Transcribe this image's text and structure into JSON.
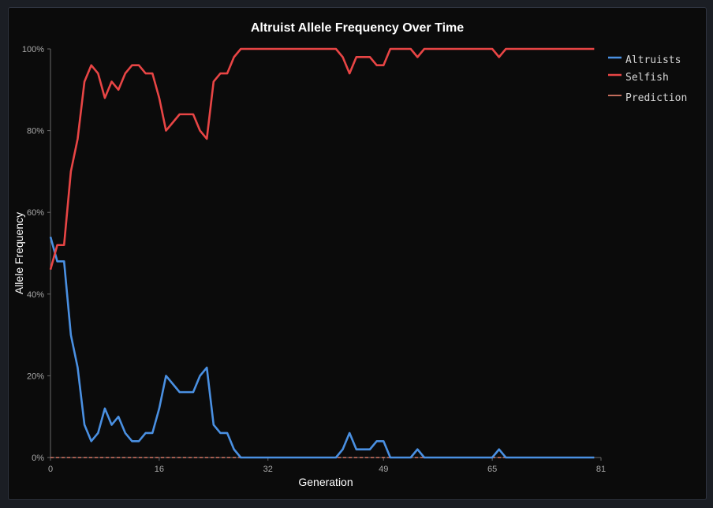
{
  "chart_data": {
    "type": "line",
    "title": "Altruist Allele Frequency Over Time",
    "xlabel": "Generation",
    "ylabel": "Allele Frequency",
    "xlim": [
      0,
      81
    ],
    "ylim": [
      0,
      100
    ],
    "x_ticks": [
      "0",
      "16",
      "32",
      "49",
      "65",
      "81"
    ],
    "y_ticks": [
      "0%",
      "20%",
      "40%",
      "60%",
      "80%",
      "100%"
    ],
    "legend_position": "top-right",
    "grid": false,
    "series": [
      {
        "name": "Altruists",
        "color": "#4a90e2",
        "style": "solid",
        "values": [
          54,
          48,
          48,
          30,
          22,
          8,
          4,
          6,
          12,
          8,
          10,
          6,
          4,
          4,
          6,
          6,
          12,
          20,
          18,
          16,
          16,
          16,
          20,
          22,
          8,
          6,
          6,
          2,
          0,
          0,
          0,
          0,
          0,
          0,
          0,
          0,
          0,
          0,
          0,
          0,
          0,
          0,
          0,
          2,
          6,
          2,
          2,
          2,
          4,
          4,
          0,
          0,
          0,
          0,
          2,
          0,
          0,
          0,
          0,
          0,
          0,
          0,
          0,
          0,
          0,
          0,
          2,
          0,
          0,
          0,
          0,
          0,
          0,
          0,
          0,
          0,
          0,
          0,
          0,
          0,
          0
        ]
      },
      {
        "name": "Selfish",
        "color": "#e84545",
        "style": "solid",
        "values": [
          46,
          52,
          52,
          70,
          78,
          92,
          96,
          94,
          88,
          92,
          90,
          94,
          96,
          96,
          94,
          94,
          88,
          80,
          82,
          84,
          84,
          84,
          80,
          78,
          92,
          94,
          94,
          98,
          100,
          100,
          100,
          100,
          100,
          100,
          100,
          100,
          100,
          100,
          100,
          100,
          100,
          100,
          100,
          98,
          94,
          98,
          98,
          98,
          96,
          96,
          100,
          100,
          100,
          100,
          98,
          100,
          100,
          100,
          100,
          100,
          100,
          100,
          100,
          100,
          100,
          100,
          98,
          100,
          100,
          100,
          100,
          100,
          100,
          100,
          100,
          100,
          100,
          100,
          100,
          100,
          100
        ]
      },
      {
        "name": "Prediction",
        "color": "#ff8c78",
        "style": "dashed",
        "values": [
          0,
          0,
          0,
          0,
          0,
          0,
          0,
          0,
          0,
          0,
          0,
          0,
          0,
          0,
          0,
          0,
          0,
          0,
          0,
          0,
          0,
          0,
          0,
          0,
          0,
          0,
          0,
          0,
          0,
          0,
          0,
          0,
          0,
          0,
          0,
          0,
          0,
          0,
          0,
          0,
          0,
          0,
          0,
          0,
          0,
          0,
          0,
          0,
          0,
          0,
          0,
          0,
          0,
          0,
          0,
          0,
          0,
          0,
          0,
          0,
          0,
          0,
          0,
          0,
          0,
          0,
          0,
          0,
          0,
          0,
          0,
          0,
          0,
          0,
          0,
          0,
          0,
          0,
          0,
          0,
          0
        ]
      }
    ]
  }
}
